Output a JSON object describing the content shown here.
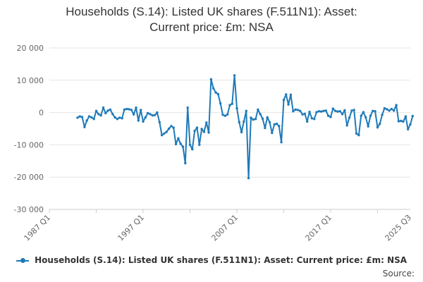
{
  "chart_data": {
    "type": "line",
    "title": "Households (S.14): Listed UK shares (F.511N1): Asset: Current price: £m: NSA",
    "title_lines": [
      "Households (S.14): Listed UK shares (F.511N1): Asset:",
      "Current price: £m: NSA"
    ],
    "ylim": [
      -30000,
      20000
    ],
    "yticks": [
      20000,
      10000,
      0,
      -10000,
      -20000,
      -30000
    ],
    "ytick_labels": [
      "20 000",
      "10 000",
      "0",
      "-10 000",
      "-20 000",
      "-30 000"
    ],
    "xticks": [
      1987.0,
      1997.0,
      2007.0,
      2017.0,
      2025.5
    ],
    "xtick_labels": [
      "1987 Q1",
      "1997 Q1",
      "2007 Q1",
      "2017 Q1",
      "2025 Q3"
    ],
    "xlim": [
      1987.0,
      2025.5
    ],
    "series_color": "#1f7ab8",
    "series": [
      {
        "name": "Households (S.14): Listed UK shares (F.511N1): Asset: Current price: £m: NSA",
        "points": [
          [
            1990.0,
            -1600
          ],
          [
            1990.25,
            -1200
          ],
          [
            1990.5,
            -1400
          ],
          [
            1990.75,
            -4500
          ],
          [
            1991.0,
            -2500
          ],
          [
            1991.25,
            -1200
          ],
          [
            1991.5,
            -1500
          ],
          [
            1991.75,
            -2000
          ],
          [
            1992.0,
            500
          ],
          [
            1992.25,
            -500
          ],
          [
            1992.5,
            -900
          ],
          [
            1992.75,
            1500
          ],
          [
            1993.0,
            -200
          ],
          [
            1993.25,
            600
          ],
          [
            1993.5,
            900
          ],
          [
            1993.75,
            -500
          ],
          [
            1994.0,
            -1500
          ],
          [
            1994.25,
            -2000
          ],
          [
            1994.5,
            -1600
          ],
          [
            1994.75,
            -1800
          ],
          [
            1995.0,
            900
          ],
          [
            1995.25,
            1100
          ],
          [
            1995.5,
            1000
          ],
          [
            1995.75,
            800
          ],
          [
            1996.0,
            -600
          ],
          [
            1996.25,
            1500
          ],
          [
            1996.5,
            -2500
          ],
          [
            1996.75,
            800
          ],
          [
            1997.0,
            -2800
          ],
          [
            1997.25,
            -1500
          ],
          [
            1997.5,
            -200
          ],
          [
            1997.75,
            -500
          ],
          [
            1998.0,
            -900
          ],
          [
            1998.25,
            -800
          ],
          [
            1998.5,
            0
          ],
          [
            1998.75,
            -3000
          ],
          [
            1999.0,
            -7000
          ],
          [
            1999.25,
            -6500
          ],
          [
            1999.5,
            -6000
          ],
          [
            1999.75,
            -5000
          ],
          [
            2000.0,
            -4200
          ],
          [
            2000.25,
            -4700
          ],
          [
            2000.5,
            -9800
          ],
          [
            2000.75,
            -8000
          ],
          [
            2001.0,
            -9700
          ],
          [
            2001.25,
            -10600
          ],
          [
            2001.5,
            -15700
          ],
          [
            2001.75,
            1500
          ],
          [
            2002.0,
            -10000
          ],
          [
            2002.25,
            -11400
          ],
          [
            2002.5,
            -5700
          ],
          [
            2002.75,
            -4700
          ],
          [
            2003.0,
            -10000
          ],
          [
            2003.25,
            -5100
          ],
          [
            2003.5,
            -6000
          ],
          [
            2003.75,
            -3100
          ],
          [
            2004.0,
            -6200
          ],
          [
            2004.25,
            10300
          ],
          [
            2004.5,
            7500
          ],
          [
            2004.75,
            6200
          ],
          [
            2005.0,
            5700
          ],
          [
            2005.25,
            2800
          ],
          [
            2005.5,
            -700
          ],
          [
            2005.75,
            -1000
          ],
          [
            2006.0,
            -600
          ],
          [
            2006.25,
            2300
          ],
          [
            2006.5,
            2700
          ],
          [
            2006.75,
            11500
          ],
          [
            2007.0,
            1300
          ],
          [
            2007.25,
            -3000
          ],
          [
            2007.5,
            -6100
          ],
          [
            2007.75,
            -2800
          ],
          [
            2008.0,
            500
          ],
          [
            2008.25,
            -20300
          ],
          [
            2008.5,
            -1600
          ],
          [
            2008.75,
            -2200
          ],
          [
            2009.0,
            -2000
          ],
          [
            2009.25,
            900
          ],
          [
            2009.5,
            -500
          ],
          [
            2009.75,
            -1900
          ],
          [
            2010.0,
            -4800
          ],
          [
            2010.25,
            -1500
          ],
          [
            2010.5,
            -3000
          ],
          [
            2010.75,
            -6300
          ],
          [
            2011.0,
            -3700
          ],
          [
            2011.25,
            -3500
          ],
          [
            2011.5,
            -4200
          ],
          [
            2011.75,
            -9200
          ],
          [
            2012.0,
            3900
          ],
          [
            2012.25,
            5600
          ],
          [
            2012.5,
            2500
          ],
          [
            2012.75,
            5500
          ],
          [
            2013.0,
            400
          ],
          [
            2013.25,
            900
          ],
          [
            2013.5,
            800
          ],
          [
            2013.75,
            500
          ],
          [
            2014.0,
            -600
          ],
          [
            2014.25,
            -400
          ],
          [
            2014.5,
            -2800
          ],
          [
            2014.75,
            200
          ],
          [
            2015.0,
            -1800
          ],
          [
            2015.25,
            -2000
          ],
          [
            2015.5,
            100
          ],
          [
            2015.75,
            400
          ],
          [
            2016.0,
            300
          ],
          [
            2016.25,
            500
          ],
          [
            2016.5,
            600
          ],
          [
            2016.75,
            -1000
          ],
          [
            2017.0,
            -1400
          ],
          [
            2017.25,
            1200
          ],
          [
            2017.5,
            500
          ],
          [
            2017.75,
            300
          ],
          [
            2018.0,
            400
          ],
          [
            2018.25,
            -500
          ],
          [
            2018.5,
            700
          ],
          [
            2018.75,
            -4000
          ],
          [
            2019.0,
            -1600
          ],
          [
            2019.25,
            600
          ],
          [
            2019.5,
            800
          ],
          [
            2019.75,
            -6500
          ],
          [
            2020.0,
            -7000
          ],
          [
            2020.25,
            -1000
          ],
          [
            2020.5,
            100
          ],
          [
            2020.75,
            -1500
          ],
          [
            2021.0,
            -4300
          ],
          [
            2021.25,
            -1000
          ],
          [
            2021.5,
            500
          ],
          [
            2021.75,
            400
          ],
          [
            2022.0,
            -4600
          ],
          [
            2022.25,
            -3500
          ],
          [
            2022.5,
            -700
          ],
          [
            2022.75,
            1300
          ],
          [
            2023.0,
            1000
          ],
          [
            2023.25,
            600
          ],
          [
            2023.5,
            1100
          ],
          [
            2023.75,
            600
          ],
          [
            2024.0,
            2300
          ],
          [
            2024.25,
            -2700
          ],
          [
            2024.5,
            -2600
          ],
          [
            2024.75,
            -2800
          ],
          [
            2025.0,
            -1200
          ],
          [
            2025.25,
            -5200
          ],
          [
            2025.5,
            -3700
          ],
          [
            2025.75,
            -1100
          ]
        ]
      }
    ]
  },
  "legend": {
    "label": "Households (S.14): Listed UK shares (F.511N1): Asset: Current price: £m: NSA"
  },
  "source": {
    "label": "Source:"
  }
}
